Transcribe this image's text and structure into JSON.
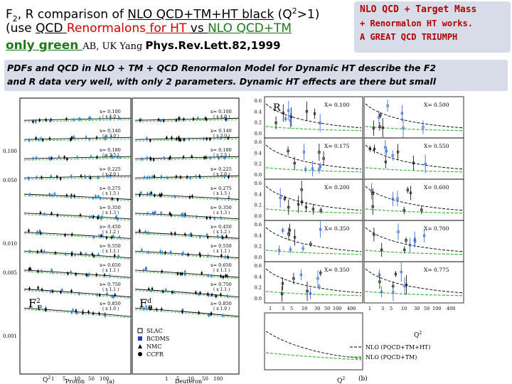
{
  "title": {
    "line1_prefix": "F",
    "line1_sub": "2",
    "line1_mid": ", R comparison of ",
    "line1_underlined": "NLO QCD+TM+HT  black",
    "line1_q": " (Q",
    "line1_sup": "2",
    "line1_end": ">1)",
    "line2_open": "(use ",
    "line2_qcd": "QCD ",
    "line2_renorm": "Renormalons",
    "line2_forht": " for HT ",
    "line2_vs": " vs ",
    "line2_nlo": "NLO QCD+TM",
    "line3_only": "only green ",
    "line3_authors": "AB, UK Yang ",
    "line3_ref": "Phys.Rev.Lett.82,1999"
  },
  "note_box": {
    "line1": "NLO QCD + Target Mass",
    "line2": "+ Renormalon HT works.",
    "line3": "A GREAT QCD TRIUMPH"
  },
  "banner": {
    "line1": "PDFs and QCD in NLO  + TM + QCD Renormalon Model for Dynamic HT describe the F2",
    "line2": " and R data  very well, with only 2 parameters. Dynamic HT effects are there but small"
  },
  "left_plot": {
    "legend": [
      "SLAC",
      "BCDMS",
      "NMC",
      "CCFR"
    ],
    "x_ticks": [
      "1",
      "5",
      "10",
      "50",
      "100"
    ],
    "y_ticks": [
      "0.100",
      "0.050",
      "0.010",
      "0.005",
      "0.001"
    ],
    "proton_label": "Proton",
    "deuteron_label": "Deuteron",
    "panel_a": "(a)",
    "axis_label": "Q",
    "f2p": "F",
    "f2d": "F",
    "left_labels": [
      {
        "x": "x= 0.100",
        "s": "( x 4.0 )"
      },
      {
        "x": "x= 0.140",
        "s": "( x 3.0 )"
      },
      {
        "x": "x= 0.180",
        "s": "( x 2.5 )"
      },
      {
        "x": "x= 0.225",
        "s": "( x 2.0 )"
      },
      {
        "x": "x= 0.275",
        "s": "( x 1.5 )"
      },
      {
        "x": "x= 0.350",
        "s": "( x 1.3 )"
      },
      {
        "x": "x= 0.450",
        "s": "( x 1.2 )"
      },
      {
        "x": "x= 0.550",
        "s": "( x 1.1 )"
      },
      {
        "x": "x= 0.650",
        "s": "( x 1.1 )"
      },
      {
        "x": "x= 0.750",
        "s": "( x 1.1 )"
      },
      {
        "x": "x= 0.850",
        "s": "( x 1.0 )"
      }
    ],
    "right_labels": [
      {
        "x": "x= 0.100",
        "s": "( x 4.0 )"
      },
      {
        "x": "x= 0.140",
        "s": "( x 3.0 )"
      },
      {
        "x": "x= 0.180",
        "s": "( x 2.5 )"
      },
      {
        "x": "x= 0.225",
        "s": "( x 2.0 )"
      },
      {
        "x": "x= 0.275",
        "s": "( x 1.5 )"
      },
      {
        "x": "x= 0.350",
        "s": "( x 1.3 )"
      },
      {
        "x": "x= 0.450",
        "s": "( x 1.2 )"
      },
      {
        "x": "x= 0.550",
        "s": "( x 1.1 )"
      },
      {
        "x": "x= 0.650",
        "s": "( x 1.1 )"
      },
      {
        "x": "x= 0.750",
        "s": "( x 1.1 )"
      },
      {
        "x": "x= 0.850",
        "s": "( x 1.0 )"
      }
    ]
  },
  "right_plot": {
    "y_ticks": [
      "0.6",
      "0.4",
      "0.2",
      "0.0"
    ],
    "x_ticks": [
      "1",
      "3",
      "5",
      "10",
      "30",
      "50",
      "100",
      "400"
    ],
    "panel_label": "R",
    "panel_b": "(b)",
    "axis_label": "Q",
    "panels_left": [
      "X= 0.100",
      "X= 0.175",
      "X= 0.200",
      "X= 0.350",
      "X= 0.350"
    ],
    "panels_right": [
      "X= 0.500",
      "X= 0.550",
      "X= 0.600",
      "X= 0.700",
      "X= 0.775"
    ],
    "legend": [
      "NLO (PQCD+TM+HT)",
      "NLO (PQCD+TM)"
    ]
  }
}
